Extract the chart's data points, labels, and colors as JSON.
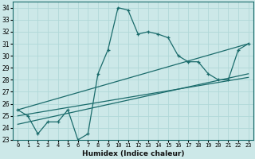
{
  "title": "",
  "xlabel": "Humidex (Indice chaleur)",
  "xlim": [
    -0.5,
    23.5
  ],
  "ylim": [
    23,
    34.5
  ],
  "yticks": [
    23,
    24,
    25,
    26,
    27,
    28,
    29,
    30,
    31,
    32,
    33,
    34
  ],
  "xticks": [
    0,
    1,
    2,
    3,
    4,
    5,
    6,
    7,
    8,
    9,
    10,
    11,
    12,
    13,
    14,
    15,
    16,
    17,
    18,
    19,
    20,
    21,
    22,
    23
  ],
  "bg_color": "#cce8e8",
  "line_color": "#1a6b6b",
  "grid_color": "#b0d8d8",
  "series1_x": [
    0,
    1,
    2,
    3,
    4,
    5,
    6,
    7,
    8,
    9,
    10,
    11,
    12,
    13,
    14,
    15,
    16,
    17,
    18,
    19,
    20,
    21,
    22,
    23
  ],
  "series1_y": [
    25.5,
    25.0,
    23.5,
    24.5,
    24.5,
    25.5,
    23.0,
    23.5,
    28.5,
    30.5,
    34.0,
    33.8,
    31.8,
    32.0,
    31.8,
    31.5,
    30.0,
    29.5,
    29.5,
    28.5,
    28.0,
    28.0,
    30.5,
    31.0
  ],
  "series2_x": [
    0,
    23
  ],
  "series2_y": [
    25.5,
    31.0
  ],
  "series3_x": [
    0,
    23
  ],
  "series3_y": [
    25.0,
    28.2
  ],
  "series4_x": [
    0,
    23
  ],
  "series4_y": [
    24.3,
    28.5
  ]
}
